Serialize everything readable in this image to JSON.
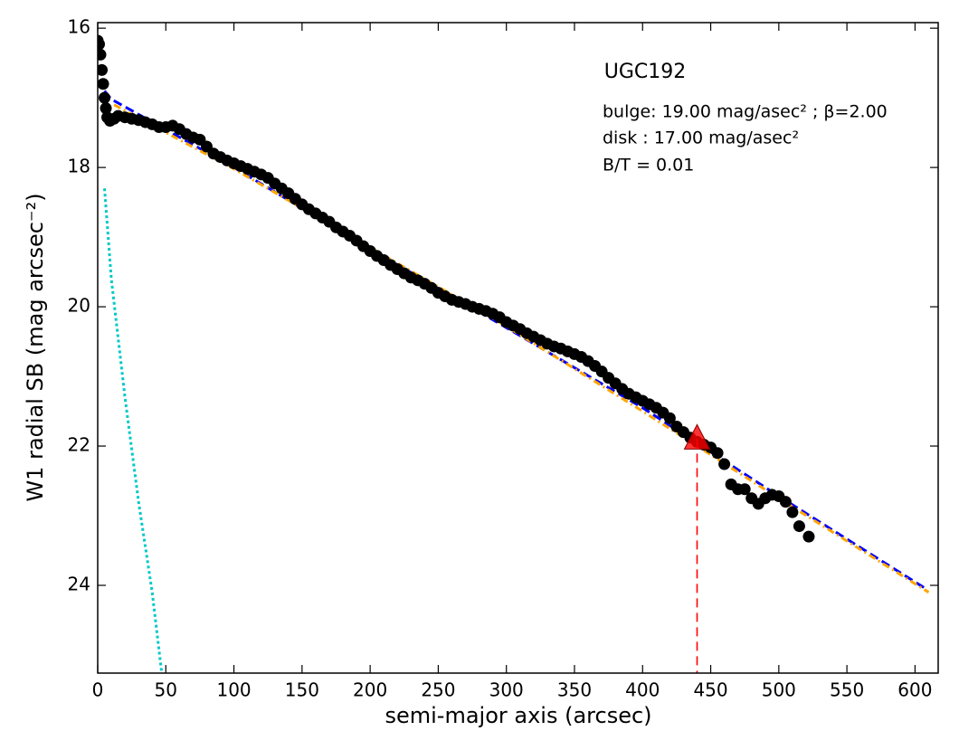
{
  "chart_data": {
    "type": "scatter",
    "annotations": [
      "UGC192",
      "bulge: 19.00 mag/asec² ; β=2.00",
      "disk  : 17.00 mag/asec²",
      "B/T = 0.01"
    ],
    "x_label": "semi-major axis (arcsec)",
    "y_label": "W1 radial SB (mag arcsec⁻²)",
    "xlim": [
      0,
      617
    ],
    "ylim": [
      15.92,
      25.26
    ],
    "y_inverted": true,
    "xticks": [
      0,
      50,
      100,
      150,
      200,
      250,
      300,
      350,
      400,
      450,
      500,
      550,
      600
    ],
    "yticks": [
      16,
      18,
      20,
      22,
      24
    ],
    "series": [
      {
        "style": "points",
        "color": "#000000",
        "x": [
          0,
          1,
          2,
          3,
          4,
          5,
          6,
          7,
          9,
          12,
          15,
          20,
          25,
          30,
          35,
          40,
          45,
          50,
          55,
          60,
          65,
          70,
          75,
          80,
          85,
          90,
          95,
          100,
          105,
          110,
          115,
          120,
          125,
          130,
          135,
          140,
          145,
          150,
          155,
          160,
          165,
          170,
          175,
          180,
          185,
          190,
          195,
          200,
          205,
          210,
          215,
          220,
          225,
          230,
          235,
          240,
          245,
          250,
          255,
          260,
          265,
          270,
          275,
          280,
          285,
          290,
          295,
          300,
          305,
          310,
          315,
          320,
          325,
          330,
          335,
          340,
          345,
          350,
          355,
          360,
          365,
          370,
          375,
          380,
          385,
          390,
          395,
          400,
          405,
          410,
          415,
          420,
          425,
          430,
          435,
          440,
          445,
          450,
          455,
          460,
          465,
          470,
          475,
          480,
          485,
          490,
          495,
          500,
          505,
          510,
          515,
          522
        ],
        "values": [
          16.18,
          16.23,
          16.38,
          16.6,
          16.8,
          17.0,
          17.15,
          17.28,
          17.33,
          17.3,
          17.26,
          17.28,
          17.3,
          17.32,
          17.35,
          17.38,
          17.42,
          17.42,
          17.4,
          17.45,
          17.52,
          17.57,
          17.6,
          17.7,
          17.8,
          17.85,
          17.9,
          17.94,
          17.98,
          18.02,
          18.06,
          18.1,
          18.15,
          18.23,
          18.3,
          18.37,
          18.45,
          18.53,
          18.6,
          18.66,
          18.72,
          18.78,
          18.86,
          18.92,
          18.98,
          19.05,
          19.13,
          19.2,
          19.27,
          19.33,
          19.4,
          19.46,
          19.52,
          19.58,
          19.62,
          19.67,
          19.73,
          19.8,
          19.85,
          19.9,
          19.93,
          19.96,
          20.0,
          20.03,
          20.06,
          20.1,
          20.15,
          20.22,
          20.27,
          20.32,
          20.38,
          20.43,
          20.48,
          20.53,
          20.57,
          20.6,
          20.64,
          20.68,
          20.72,
          20.78,
          20.85,
          20.93,
          21.02,
          21.1,
          21.18,
          21.25,
          21.3,
          21.35,
          21.4,
          21.45,
          21.52,
          21.6,
          21.72,
          21.8,
          21.88,
          21.94,
          21.98,
          22.02,
          22.1,
          22.26,
          22.55,
          22.62,
          22.62,
          22.75,
          22.83,
          22.75,
          22.7,
          22.72,
          22.8,
          22.95,
          23.15,
          23.3
        ]
      },
      {
        "style": "dashed",
        "color": "#0000ff",
        "x": [
          5,
          10,
          100,
          200,
          300,
          400,
          500,
          608
        ],
        "values": [
          16.9,
          17.02,
          18.0,
          19.17,
          20.3,
          21.45,
          22.72,
          24.05
        ]
      },
      {
        "style": "dashdot",
        "color": "#ffa500",
        "x": [
          12,
          100,
          200,
          300,
          400,
          500,
          610
        ],
        "values": [
          17.1,
          18.02,
          19.15,
          20.28,
          21.5,
          22.75,
          24.1
        ]
      },
      {
        "style": "dotted",
        "color": "#00c8c8",
        "x": [
          5,
          10,
          20,
          30,
          40,
          47
        ],
        "values": [
          18.3,
          19.6,
          21.3,
          22.8,
          24.1,
          25.26
        ]
      },
      {
        "style": "triangle",
        "color": "#ff0000",
        "x": [
          440
        ],
        "values": [
          21.9
        ]
      }
    ]
  }
}
